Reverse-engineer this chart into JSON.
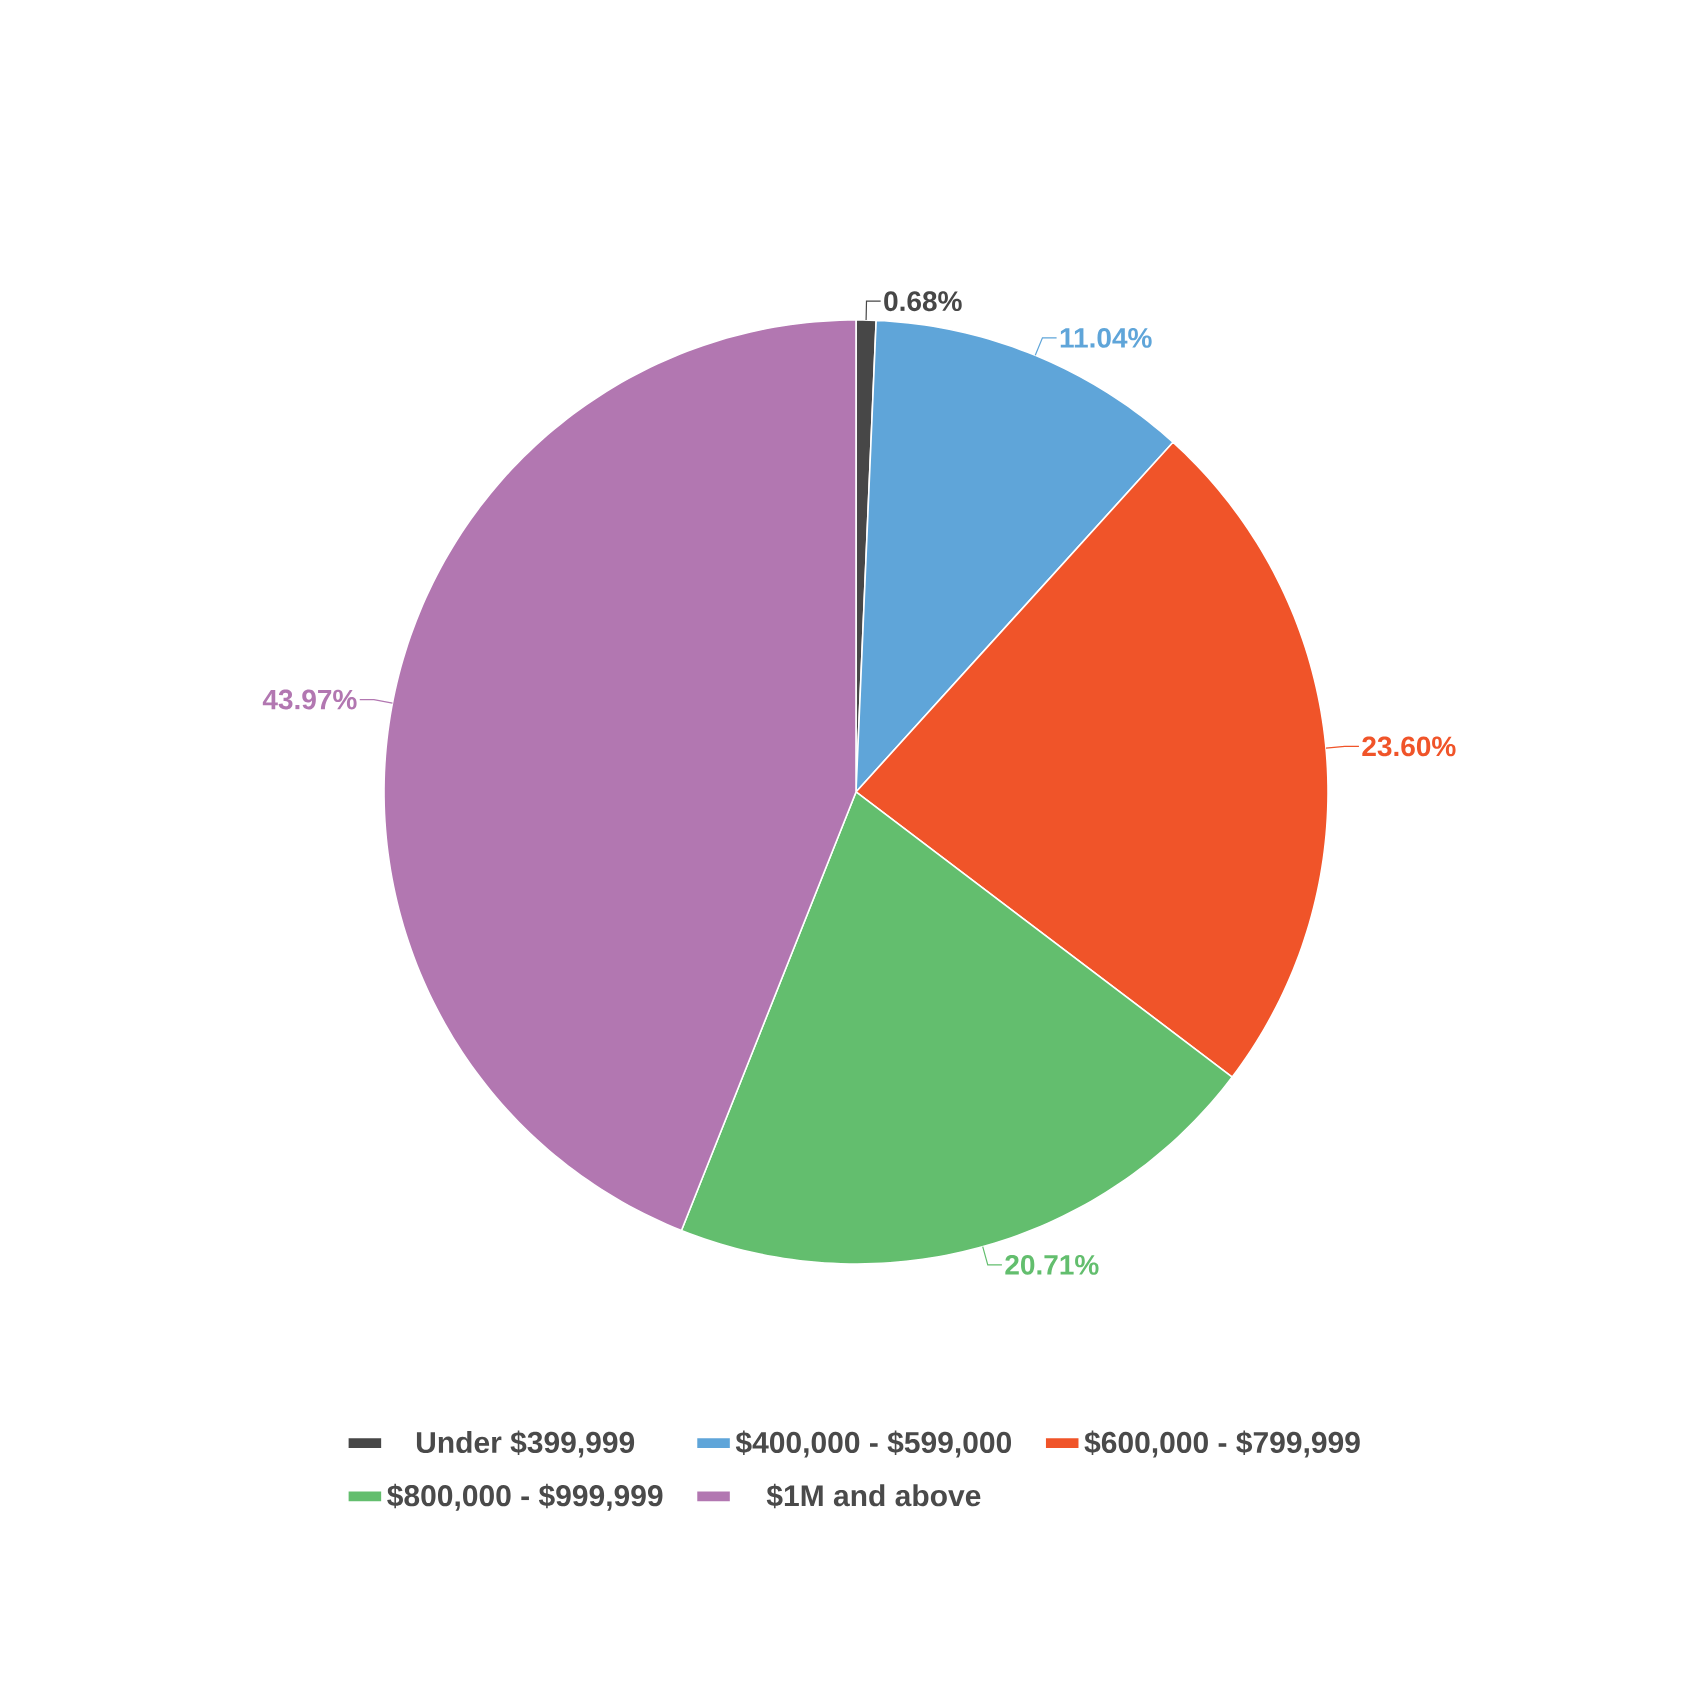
{
  "chart_data": {
    "type": "pie",
    "categories": [
      "Under $399,999",
      "$400,000 - $599,000",
      "$600,000 - $799,999",
      "$800,000 - $999,999",
      "$1M and above"
    ],
    "values": [
      0.68,
      11.04,
      23.6,
      20.71,
      43.97
    ],
    "colors": [
      "#474747",
      "#5fa5d9",
      "#f05429",
      "#63be6e",
      "#b277b1"
    ],
    "value_labels": [
      "0.68%",
      "11.04%",
      "23.60%",
      "20.71%",
      "43.97%"
    ],
    "legend": "bottom"
  }
}
